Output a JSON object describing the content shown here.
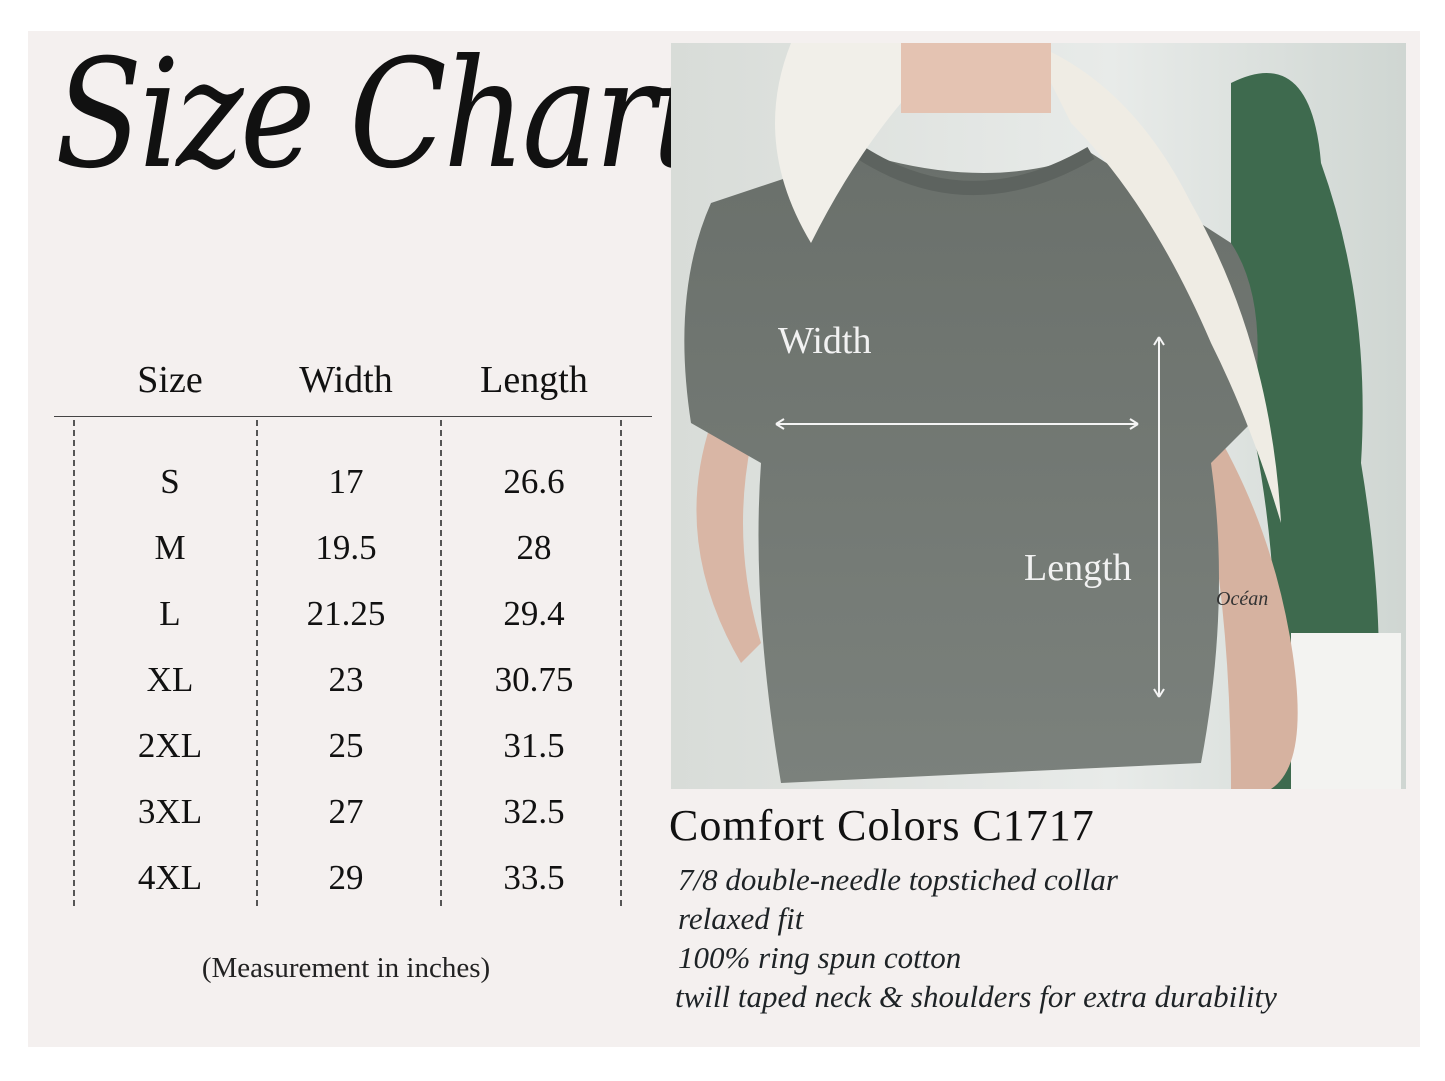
{
  "title": "Size Chart",
  "table": {
    "headers": [
      "Size",
      "Width",
      "Length"
    ],
    "rows": [
      [
        "S",
        "17",
        "26.6"
      ],
      [
        "M",
        "19.5",
        "28"
      ],
      [
        "L",
        "21.25",
        "29.4"
      ],
      [
        "XL",
        "23",
        "30.75"
      ],
      [
        "2XL",
        "25",
        "31.5"
      ],
      [
        "3XL",
        "27",
        "32.5"
      ],
      [
        "4XL",
        "29",
        "33.5"
      ]
    ],
    "note": "(Measurement in inches)"
  },
  "photo": {
    "width_label": "Width",
    "length_label": "Length",
    "tattoo": "Océan"
  },
  "product": {
    "name": "Comfort Colors C1717",
    "features": [
      "7/8 double-needle topstiched collar",
      "relaxed fit",
      "100% ring spun cotton",
      "twill taped neck & shoulders for extra durability"
    ]
  },
  "colors": {
    "background": "#f4f0ef",
    "text": "#111111",
    "shirt": "#6f7570"
  }
}
